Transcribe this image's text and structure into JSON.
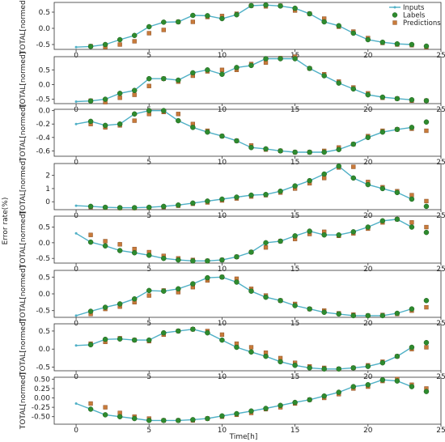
{
  "chart_data": {
    "type": "line",
    "ylabel_shared": "Error rate(%)",
    "xlabel": "Time[h]",
    "legend": {
      "placement": "top-right",
      "entries": [
        {
          "name": "Inputs",
          "marker": "line-dot",
          "color": "#4fb0c6"
        },
        {
          "name": "Labels",
          "marker": "circle",
          "color": "#2e8b2e"
        },
        {
          "name": "Predictions",
          "marker": "square",
          "color": "#c87a3a"
        }
      ]
    },
    "colors": {
      "inputs": "#4fb0c6",
      "labels": "#2e8b2e",
      "predictions": "#c87a3a"
    },
    "xlim": [
      -1.5,
      25
    ],
    "xticks": [
      0,
      5,
      10,
      15,
      20,
      25
    ],
    "panels": [
      {
        "ylabel": "TOTAL[normed]",
        "ylim": [
          -0.65,
          0.8
        ],
        "yticks": [
          -0.5,
          0.0,
          0.5
        ],
        "ytick_labels": [
          "-0.5",
          "0.0",
          "0.5"
        ],
        "inputs_x": [
          0,
          1,
          2,
          3,
          4,
          5,
          6,
          7,
          8,
          9,
          10,
          11,
          12,
          13,
          14,
          15,
          16,
          17,
          18,
          19,
          20,
          21,
          22,
          23
        ],
        "inputs": [
          -0.58,
          -0.56,
          -0.5,
          -0.35,
          -0.22,
          0.05,
          0.19,
          0.2,
          0.4,
          0.39,
          0.3,
          0.42,
          0.7,
          0.72,
          0.69,
          0.62,
          0.45,
          0.2,
          0.08,
          -0.15,
          -0.35,
          -0.43,
          -0.48,
          -0.5
        ],
        "labels_x": [
          1,
          2,
          3,
          4,
          5,
          6,
          7,
          8,
          9,
          10,
          11,
          12,
          13,
          14,
          15,
          16,
          17,
          18,
          19,
          20,
          21,
          22,
          23,
          24
        ],
        "labels": [
          -0.56,
          -0.5,
          -0.35,
          -0.22,
          0.05,
          0.19,
          0.2,
          0.4,
          0.39,
          0.3,
          0.42,
          0.7,
          0.72,
          0.69,
          0.62,
          0.45,
          0.2,
          0.08,
          -0.15,
          -0.35,
          -0.43,
          -0.48,
          -0.5,
          -0.55
        ],
        "predictions": [
          -0.55,
          -0.58,
          -0.5,
          -0.4,
          -0.15,
          -0.05,
          0.2,
          0.2,
          0.35,
          0.38,
          0.45,
          0.7,
          0.68,
          0.7,
          0.55,
          0.45,
          0.3,
          0.05,
          -0.1,
          -0.3,
          -0.45,
          -0.5,
          -0.52,
          -0.58
        ]
      },
      {
        "ylabel": "TOTAL[normed]",
        "ylim": [
          -0.65,
          0.95
        ],
        "yticks": [
          -0.5,
          0.0,
          0.5
        ],
        "ytick_labels": [
          "-0.5",
          "0.0",
          "0.5"
        ],
        "inputs_x": [
          0,
          1,
          2,
          3,
          4,
          5,
          6,
          7,
          8,
          9,
          10,
          11,
          12,
          13,
          14,
          15,
          16,
          17,
          18,
          19,
          20,
          21,
          22,
          23
        ],
        "inputs": [
          -0.58,
          -0.56,
          -0.5,
          -0.3,
          -0.2,
          0.2,
          0.2,
          0.15,
          0.4,
          0.5,
          0.35,
          0.58,
          0.65,
          0.88,
          0.88,
          0.88,
          0.55,
          0.3,
          0.05,
          -0.15,
          -0.35,
          -0.43,
          -0.48,
          -0.52
        ],
        "labels_x": [
          1,
          2,
          3,
          4,
          5,
          6,
          7,
          8,
          9,
          10,
          11,
          12,
          13,
          14,
          15,
          16,
          17,
          18,
          19,
          20,
          21,
          22,
          23,
          24
        ],
        "labels": [
          -0.56,
          -0.5,
          -0.3,
          -0.2,
          0.2,
          0.2,
          0.15,
          0.4,
          0.5,
          0.35,
          0.58,
          0.65,
          0.88,
          0.88,
          0.88,
          0.55,
          0.3,
          0.05,
          -0.15,
          -0.35,
          -0.43,
          -0.48,
          -0.52,
          -0.55
        ],
        "predictions": [
          -0.55,
          -0.6,
          -0.45,
          -0.35,
          -0.05,
          0.2,
          0.1,
          0.3,
          0.45,
          0.5,
          0.5,
          0.7,
          0.75,
          0.9,
          0.95,
          0.55,
          0.35,
          0.1,
          -0.1,
          -0.3,
          -0.45,
          -0.48,
          -0.55,
          -0.55
        ]
      },
      {
        "ylabel": "TOTAL[normed]",
        "ylim": [
          -0.68,
          0.02
        ],
        "yticks": [
          -0.6,
          -0.4,
          -0.2,
          0.0
        ],
        "ytick_labels": [
          "-0.6",
          "-0.4",
          "-0.2",
          "0.0"
        ],
        "inputs_x": [
          0,
          1,
          2,
          3,
          4,
          5,
          6,
          7,
          8,
          9,
          10,
          11,
          12,
          13,
          14,
          15,
          16,
          17,
          18,
          19,
          20,
          21,
          22,
          23
        ],
        "inputs": [
          -0.2,
          -0.16,
          -0.22,
          -0.2,
          -0.05,
          0.0,
          0.0,
          -0.15,
          -0.25,
          -0.32,
          -0.38,
          -0.45,
          -0.55,
          -0.57,
          -0.6,
          -0.62,
          -0.62,
          -0.62,
          -0.58,
          -0.5,
          -0.4,
          -0.32,
          -0.28,
          -0.25
        ],
        "labels_x": [
          1,
          2,
          3,
          4,
          5,
          6,
          7,
          8,
          9,
          10,
          11,
          12,
          13,
          14,
          15,
          16,
          17,
          18,
          19,
          20,
          21,
          22,
          23,
          24
        ],
        "labels": [
          -0.16,
          -0.22,
          -0.2,
          -0.05,
          0.0,
          0.0,
          -0.15,
          -0.25,
          -0.32,
          -0.38,
          -0.45,
          -0.55,
          -0.57,
          -0.6,
          -0.62,
          -0.62,
          -0.62,
          -0.58,
          -0.5,
          -0.4,
          -0.32,
          -0.28,
          -0.25,
          -0.17
        ],
        "predictions": [
          -0.2,
          -0.25,
          -0.22,
          -0.15,
          -0.05,
          -0.02,
          -0.05,
          -0.2,
          -0.3,
          -0.38,
          -0.45,
          -0.52,
          -0.58,
          -0.6,
          -0.62,
          -0.62,
          -0.6,
          -0.55,
          -0.5,
          -0.38,
          -0.3,
          -0.28,
          -0.27,
          -0.3
        ]
      },
      {
        "ylabel": "TOTAL[normed]",
        "ylim": [
          -0.6,
          2.9
        ],
        "yticks": [
          0,
          1,
          2
        ],
        "ytick_labels": [
          "0",
          "1",
          "2"
        ],
        "inputs_x": [
          0,
          1,
          2,
          3,
          4,
          5,
          6,
          7,
          8,
          9,
          10,
          11,
          12,
          13,
          14,
          15,
          16,
          17,
          18,
          19,
          20,
          21,
          22,
          23
        ],
        "inputs": [
          -0.3,
          -0.35,
          -0.42,
          -0.45,
          -0.45,
          -0.42,
          -0.35,
          -0.25,
          -0.1,
          0.05,
          0.2,
          0.35,
          0.5,
          0.55,
          0.8,
          1.2,
          1.6,
          2.1,
          2.7,
          1.8,
          1.3,
          1.0,
          0.7,
          0.2
        ],
        "labels_x": [
          1,
          2,
          3,
          4,
          5,
          6,
          7,
          8,
          9,
          10,
          11,
          12,
          13,
          14,
          15,
          16,
          17,
          18,
          19,
          20,
          21,
          22,
          23,
          24
        ],
        "labels": [
          -0.35,
          -0.42,
          -0.45,
          -0.45,
          -0.42,
          -0.35,
          -0.25,
          -0.1,
          0.05,
          0.2,
          0.35,
          0.5,
          0.55,
          0.8,
          1.2,
          1.6,
          2.1,
          2.7,
          1.8,
          1.3,
          1.0,
          0.7,
          0.2,
          -0.35
        ],
        "predictions": [
          -0.4,
          -0.45,
          -0.48,
          -0.48,
          -0.45,
          -0.4,
          -0.3,
          -0.15,
          -0.05,
          0.1,
          0.25,
          0.4,
          0.5,
          0.7,
          1.0,
          1.4,
          1.8,
          2.6,
          2.65,
          1.5,
          1.1,
          0.8,
          0.5,
          0.05
        ]
      },
      {
        "ylabel": "TOTAL[normed]",
        "ylim": [
          -0.65,
          0.85
        ],
        "yticks": [
          -0.5,
          0.0,
          0.5
        ],
        "ytick_labels": [
          "-0.5",
          "0.0",
          "0.5"
        ],
        "inputs_x": [
          0,
          1,
          2,
          3,
          4,
          5,
          6,
          7,
          8,
          9,
          10,
          11,
          12,
          13,
          14,
          15,
          16,
          17,
          18,
          19,
          20,
          21,
          22,
          23
        ],
        "inputs": [
          0.3,
          0.02,
          -0.1,
          -0.25,
          -0.32,
          -0.4,
          -0.5,
          -0.55,
          -0.58,
          -0.58,
          -0.55,
          -0.45,
          -0.3,
          0.0,
          0.05,
          0.22,
          0.37,
          0.25,
          0.25,
          0.35,
          0.5,
          0.7,
          0.75,
          0.5
        ],
        "labels_x": [
          1,
          2,
          3,
          4,
          5,
          6,
          7,
          8,
          9,
          10,
          11,
          12,
          13,
          14,
          15,
          16,
          17,
          18,
          19,
          20,
          21,
          22,
          23,
          24
        ],
        "labels": [
          0.02,
          -0.1,
          -0.25,
          -0.32,
          -0.4,
          -0.5,
          -0.55,
          -0.58,
          -0.58,
          -0.55,
          -0.45,
          -0.3,
          0.0,
          0.05,
          0.22,
          0.37,
          0.25,
          0.25,
          0.35,
          0.5,
          0.7,
          0.75,
          0.5,
          0.33
        ],
        "predictions": [
          0.25,
          0.05,
          -0.05,
          -0.2,
          -0.3,
          -0.42,
          -0.5,
          -0.55,
          -0.58,
          -0.55,
          -0.45,
          -0.3,
          -0.15,
          0.05,
          0.12,
          0.28,
          0.35,
          0.22,
          0.3,
          0.45,
          0.65,
          0.75,
          0.65,
          0.5
        ]
      },
      {
        "ylabel": "TOTAL[normed]",
        "ylim": [
          -0.7,
          0.7
        ],
        "yticks": [
          -0.5,
          0.0,
          0.5
        ],
        "ytick_labels": [
          "-0.5",
          "0.0",
          "0.5"
        ],
        "inputs_x": [
          0,
          1,
          2,
          3,
          4,
          5,
          6,
          7,
          8,
          9,
          10,
          11,
          12,
          13,
          14,
          15,
          16,
          17,
          18,
          19,
          20,
          21,
          22,
          23
        ],
        "inputs": [
          -0.65,
          -0.52,
          -0.4,
          -0.3,
          -0.15,
          0.1,
          0.08,
          0.15,
          0.3,
          0.48,
          0.5,
          0.35,
          0.08,
          -0.1,
          -0.2,
          -0.35,
          -0.45,
          -0.55,
          -0.6,
          -0.65,
          -0.65,
          -0.65,
          -0.58,
          -0.45
        ],
        "labels_x": [
          1,
          2,
          3,
          4,
          5,
          6,
          7,
          8,
          9,
          10,
          11,
          12,
          13,
          14,
          15,
          16,
          17,
          18,
          19,
          20,
          21,
          22,
          23,
          24
        ],
        "labels": [
          -0.52,
          -0.4,
          -0.3,
          -0.15,
          0.1,
          0.08,
          0.15,
          0.3,
          0.48,
          0.5,
          0.35,
          0.08,
          -0.1,
          -0.2,
          -0.35,
          -0.45,
          -0.55,
          -0.6,
          -0.65,
          -0.65,
          -0.65,
          -0.58,
          -0.45,
          -0.2
        ],
        "predictions": [
          -0.6,
          -0.45,
          -0.38,
          -0.25,
          -0.05,
          0.1,
          0.05,
          0.2,
          0.4,
          0.5,
          0.45,
          0.15,
          -0.05,
          -0.2,
          -0.3,
          -0.45,
          -0.5,
          -0.58,
          -0.62,
          -0.65,
          -0.63,
          -0.6,
          -0.5,
          -0.4
        ]
      },
      {
        "ylabel": "TOTAL[normed]",
        "ylim": [
          -0.6,
          0.7
        ],
        "yticks": [
          -0.5,
          0.0,
          0.5
        ],
        "ytick_labels": [
          "-0.5",
          "0.0",
          "0.5"
        ],
        "inputs_x": [
          0,
          1,
          2,
          3,
          4,
          5,
          6,
          7,
          8,
          9,
          10,
          11,
          12,
          13,
          14,
          15,
          16,
          17,
          18,
          19,
          20,
          21,
          22,
          23
        ],
        "inputs": [
          0.1,
          0.12,
          0.27,
          0.28,
          0.25,
          0.25,
          0.45,
          0.5,
          0.55,
          0.45,
          0.25,
          0.05,
          -0.08,
          -0.2,
          -0.35,
          -0.45,
          -0.52,
          -0.55,
          -0.55,
          -0.52,
          -0.48,
          -0.38,
          -0.2,
          0.05
        ],
        "labels_x": [
          1,
          2,
          3,
          4,
          5,
          6,
          7,
          8,
          9,
          10,
          11,
          12,
          13,
          14,
          15,
          16,
          17,
          18,
          19,
          20,
          21,
          22,
          23,
          24
        ],
        "labels": [
          0.12,
          0.27,
          0.28,
          0.25,
          0.25,
          0.45,
          0.5,
          0.55,
          0.45,
          0.25,
          0.05,
          -0.08,
          -0.2,
          -0.35,
          -0.45,
          -0.52,
          -0.55,
          -0.55,
          -0.52,
          -0.48,
          -0.38,
          -0.2,
          0.05,
          0.18
        ],
        "predictions": [
          0.15,
          0.2,
          0.3,
          0.25,
          0.22,
          0.4,
          0.5,
          0.55,
          0.5,
          0.4,
          0.15,
          0.05,
          -0.1,
          -0.25,
          -0.38,
          -0.48,
          -0.52,
          -0.55,
          -0.52,
          -0.45,
          -0.35,
          -0.2,
          0.0,
          0.05
        ]
      },
      {
        "ylabel": "TOTAL[normed]",
        "ylim": [
          -0.7,
          0.55
        ],
        "yticks": [
          -0.5,
          -0.25,
          0.0,
          0.25,
          0.5
        ],
        "ytick_labels": [
          "-0.50",
          "-0.25",
          "0.00",
          "0.25",
          "0.50"
        ],
        "inputs_x": [
          0,
          1,
          2,
          3,
          4,
          5,
          6,
          7,
          8,
          9,
          10,
          11,
          12,
          13,
          14,
          15,
          16,
          17,
          18,
          19,
          20,
          21,
          22,
          23
        ],
        "inputs": [
          -0.15,
          -0.3,
          -0.45,
          -0.5,
          -0.55,
          -0.6,
          -0.6,
          -0.6,
          -0.58,
          -0.55,
          -0.48,
          -0.42,
          -0.35,
          -0.28,
          -0.2,
          -0.12,
          -0.05,
          0.05,
          0.15,
          0.3,
          0.35,
          0.48,
          0.45,
          0.3
        ],
        "labels_x": [
          1,
          2,
          3,
          4,
          5,
          6,
          7,
          8,
          9,
          10,
          11,
          12,
          13,
          14,
          15,
          16,
          17,
          18,
          19,
          20,
          21,
          22,
          23,
          24
        ],
        "labels": [
          -0.3,
          -0.45,
          -0.5,
          -0.55,
          -0.6,
          -0.6,
          -0.6,
          -0.58,
          -0.55,
          -0.48,
          -0.42,
          -0.35,
          -0.28,
          -0.2,
          -0.12,
          -0.05,
          0.05,
          0.15,
          0.3,
          0.35,
          0.48,
          0.45,
          0.3,
          0.17
        ],
        "predictions": [
          -0.15,
          -0.25,
          -0.4,
          -0.5,
          -0.55,
          -0.6,
          -0.6,
          -0.6,
          -0.55,
          -0.5,
          -0.45,
          -0.4,
          -0.3,
          -0.25,
          -0.15,
          -0.05,
          0.0,
          0.1,
          0.25,
          0.3,
          0.45,
          0.5,
          0.35,
          0.25
        ]
      }
    ]
  }
}
